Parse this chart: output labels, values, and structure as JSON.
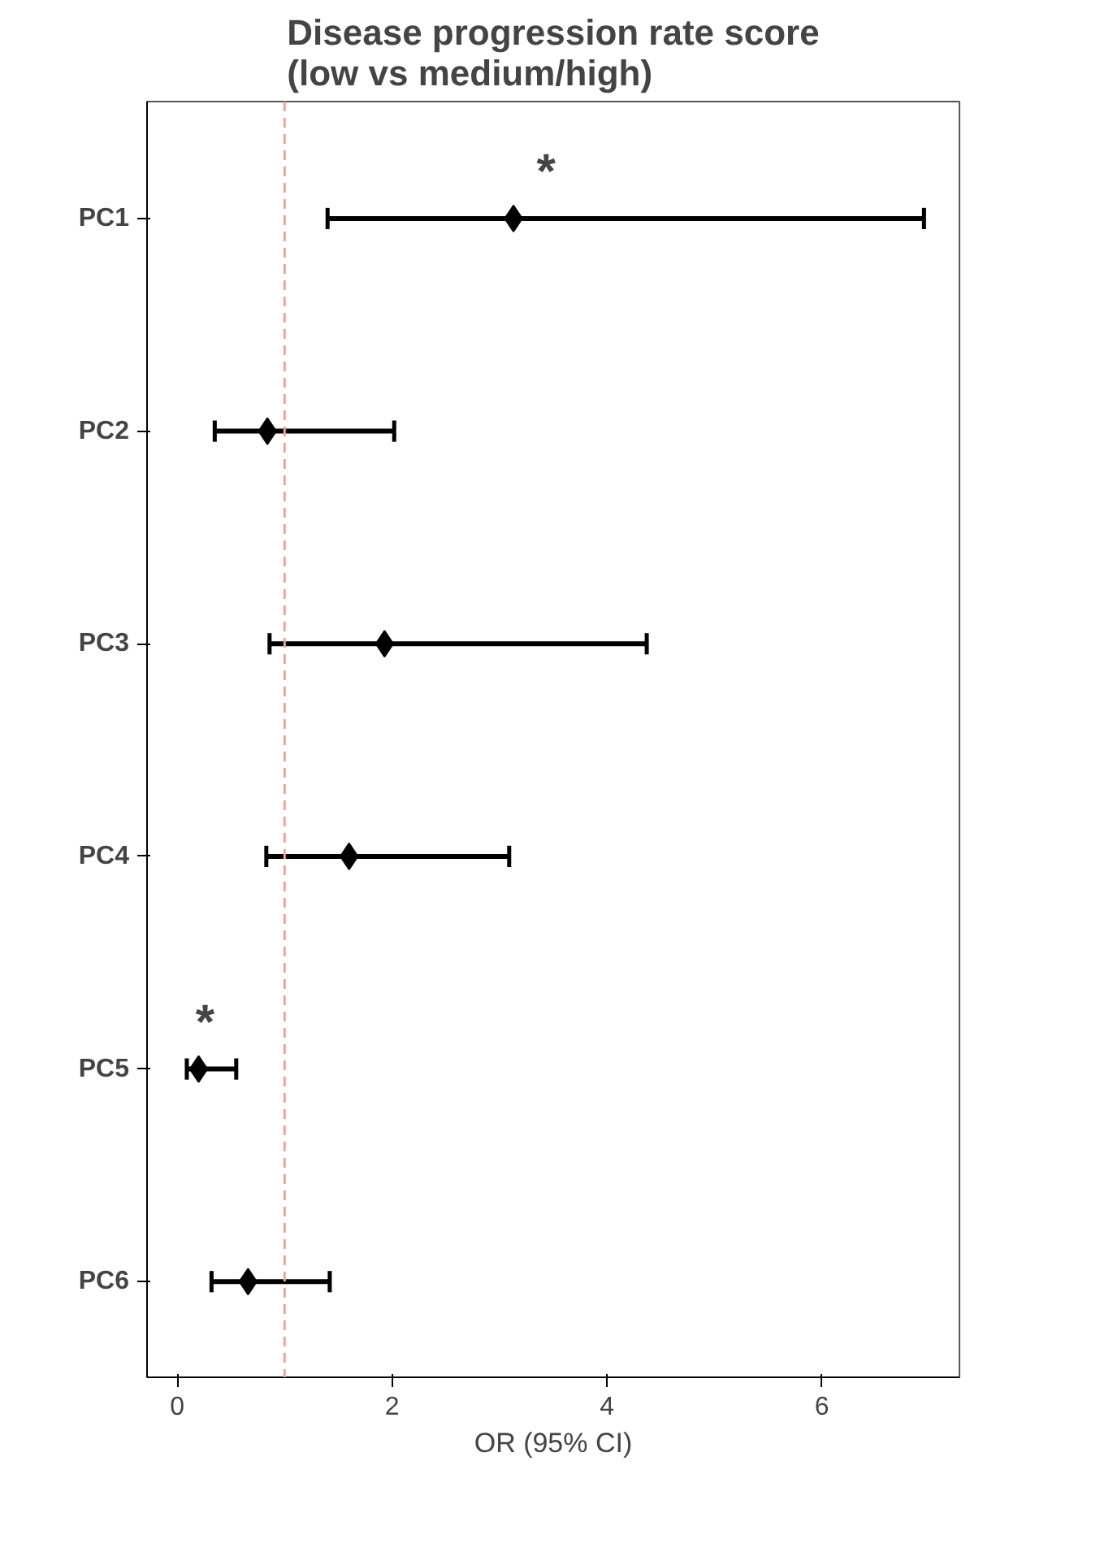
{
  "chart_data": {
    "type": "scatter",
    "title": "Disease progression rate score\n(low vs medium/high)",
    "xlabel": "OR (95% CI)",
    "orientation": "horizontal",
    "categories": [
      "PC1",
      "PC2",
      "PC3",
      "PC4",
      "PC5",
      "PC6"
    ],
    "series": [
      {
        "color": "#000000",
        "values": [
          3.13,
          0.84,
          1.93,
          1.6,
          0.2,
          0.66
        ],
        "errors": [
          [
            1.4,
            6.95
          ],
          [
            0.35,
            2.02
          ],
          [
            0.86,
            4.37
          ],
          [
            0.83,
            3.09
          ],
          [
            0.09,
            0.55
          ],
          [
            0.32,
            1.42
          ]
        ]
      }
    ],
    "marker": "diamond",
    "xlim": [
      -0.28,
      7.28
    ],
    "xticks": [
      0,
      2,
      4,
      6
    ],
    "ref_lines": [
      {
        "axis": "x",
        "value": 1,
        "color": "#f4a0a0",
        "line_style": "dashed"
      }
    ],
    "annotations": [
      "*",
      "*"
    ]
  }
}
